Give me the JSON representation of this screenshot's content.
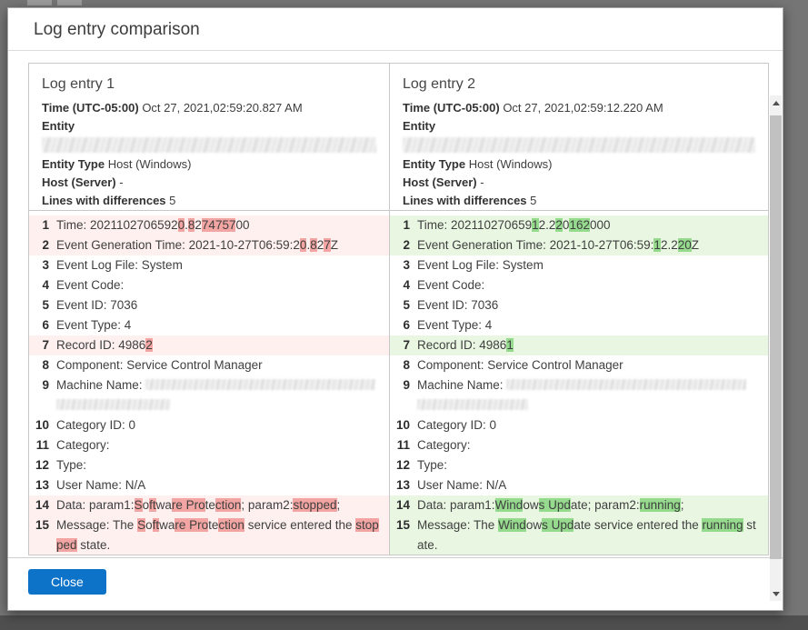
{
  "dialog": {
    "title": "Log entry comparison",
    "close_label": "Close"
  },
  "colors": {
    "removed_line_bg": "#fdf0ef",
    "removed_highlight": "#f2a5a2",
    "added_line_bg": "#e9f7e2",
    "added_highlight": "#95da8d",
    "close_button_bg": "#0c73c9",
    "backdrop": "#757575"
  },
  "panels": [
    {
      "title": "Log entry 1",
      "meta": [
        {
          "label": "Time (UTC-05:00)",
          "value": "Oct 27, 2021,02:59:20.827 AM"
        },
        {
          "label": "Entity",
          "value": "",
          "redacted": true
        },
        {
          "label": "Entity Type",
          "value": "Host (Windows)"
        },
        {
          "label": "Host (Server)",
          "value": "-"
        },
        {
          "label": "Lines with differences",
          "value": "5"
        }
      ],
      "lines": [
        {
          "num": 1,
          "status": "removed",
          "segments": [
            {
              "t": "Time: 2021102706592"
            },
            {
              "t": "0",
              "h": true
            },
            {
              "t": "."
            },
            {
              "t": "8",
              "h": true
            },
            {
              "t": "2"
            },
            {
              "t": "74757",
              "h": true
            },
            {
              "t": "00"
            }
          ]
        },
        {
          "num": 2,
          "status": "removed",
          "segments": [
            {
              "t": "Event Generation Time: 2021-10-27T06:59:2"
            },
            {
              "t": "0",
              "h": true
            },
            {
              "t": "."
            },
            {
              "t": "8",
              "h": true
            },
            {
              "t": "2"
            },
            {
              "t": "7",
              "h": true
            },
            {
              "t": "Z"
            }
          ]
        },
        {
          "num": 3,
          "status": "same",
          "segments": [
            {
              "t": "Event Log File: System"
            }
          ]
        },
        {
          "num": 4,
          "status": "same",
          "segments": [
            {
              "t": "Event Code:"
            }
          ]
        },
        {
          "num": 5,
          "status": "same",
          "segments": [
            {
              "t": "Event ID: 7036"
            }
          ]
        },
        {
          "num": 6,
          "status": "same",
          "segments": [
            {
              "t": "Event Type: 4"
            }
          ]
        },
        {
          "num": 7,
          "status": "removed",
          "segments": [
            {
              "t": "Record ID: 4986"
            },
            {
              "t": "2",
              "h": true
            }
          ]
        },
        {
          "num": 8,
          "status": "same",
          "segments": [
            {
              "t": "Component: Service Control Manager"
            }
          ]
        },
        {
          "num": 9,
          "status": "same",
          "segments": [
            {
              "t": "Machine Name: "
            },
            {
              "redact": 253
            },
            {
              "redact": 125
            }
          ]
        },
        {
          "num": 10,
          "status": "same",
          "segments": [
            {
              "t": "Category ID: 0"
            }
          ]
        },
        {
          "num": 11,
          "status": "same",
          "segments": [
            {
              "t": "Category:"
            }
          ]
        },
        {
          "num": 12,
          "status": "same",
          "segments": [
            {
              "t": "Type:"
            }
          ]
        },
        {
          "num": 13,
          "status": "same",
          "segments": [
            {
              "t": "User Name: N/A"
            }
          ]
        },
        {
          "num": 14,
          "status": "removed",
          "segments": [
            {
              "t": "Data: param1:"
            },
            {
              "t": "S",
              "h": true
            },
            {
              "t": "o"
            },
            {
              "t": "ft",
              "h": true
            },
            {
              "t": "wa"
            },
            {
              "t": "re Pro",
              "h": true
            },
            {
              "t": "te"
            },
            {
              "t": "ction",
              "h": true
            },
            {
              "t": "; param2:"
            },
            {
              "t": "stopped",
              "h": true
            },
            {
              "t": ";"
            }
          ]
        },
        {
          "num": 15,
          "status": "removed",
          "segments": [
            {
              "t": "Message: The "
            },
            {
              "t": "S",
              "h": true
            },
            {
              "t": "o"
            },
            {
              "t": "ft",
              "h": true
            },
            {
              "t": "wa"
            },
            {
              "t": "re Pro",
              "h": true
            },
            {
              "t": "te"
            },
            {
              "t": "ction",
              "h": true
            },
            {
              "t": " service entered the "
            },
            {
              "t": "stopped",
              "h": true
            },
            {
              "t": " state."
            }
          ]
        }
      ]
    },
    {
      "title": "Log entry 2",
      "meta": [
        {
          "label": "Time (UTC-05:00)",
          "value": "Oct 27, 2021,02:59:12.220 AM"
        },
        {
          "label": "Entity",
          "value": "",
          "redacted": true
        },
        {
          "label": "Entity Type",
          "value": "Host (Windows)"
        },
        {
          "label": "Host (Server)",
          "value": "-"
        },
        {
          "label": "Lines with differences",
          "value": "5"
        }
      ],
      "lines": [
        {
          "num": 1,
          "status": "added",
          "segments": [
            {
              "t": "Time: 202110270659"
            },
            {
              "t": "1",
              "h": true
            },
            {
              "t": "2.2"
            },
            {
              "t": "2",
              "h": true
            },
            {
              "t": "0"
            },
            {
              "t": "162",
              "h": true
            },
            {
              "t": "000"
            }
          ]
        },
        {
          "num": 2,
          "status": "added",
          "segments": [
            {
              "t": "Event Generation Time: 2021-10-27T06:59:"
            },
            {
              "t": "1",
              "h": true
            },
            {
              "t": "2.2"
            },
            {
              "t": "20",
              "h": true
            },
            {
              "t": "Z"
            }
          ]
        },
        {
          "num": 3,
          "status": "same",
          "segments": [
            {
              "t": "Event Log File: System"
            }
          ]
        },
        {
          "num": 4,
          "status": "same",
          "segments": [
            {
              "t": "Event Code:"
            }
          ]
        },
        {
          "num": 5,
          "status": "same",
          "segments": [
            {
              "t": "Event ID: 7036"
            }
          ]
        },
        {
          "num": 6,
          "status": "same",
          "segments": [
            {
              "t": "Event Type: 4"
            }
          ]
        },
        {
          "num": 7,
          "status": "added",
          "segments": [
            {
              "t": "Record ID: 4986"
            },
            {
              "t": "1",
              "h": true
            }
          ]
        },
        {
          "num": 8,
          "status": "same",
          "segments": [
            {
              "t": "Component: Service Control Manager"
            }
          ]
        },
        {
          "num": 9,
          "status": "same",
          "segments": [
            {
              "t": "Machine Name: "
            },
            {
              "redact": 264
            },
            {
              "redact": 122
            }
          ]
        },
        {
          "num": 10,
          "status": "same",
          "segments": [
            {
              "t": "Category ID: 0"
            }
          ]
        },
        {
          "num": 11,
          "status": "same",
          "segments": [
            {
              "t": "Category:"
            }
          ]
        },
        {
          "num": 12,
          "status": "same",
          "segments": [
            {
              "t": "Type:"
            }
          ]
        },
        {
          "num": 13,
          "status": "same",
          "segments": [
            {
              "t": "User Name: N/A"
            }
          ]
        },
        {
          "num": 14,
          "status": "added",
          "segments": [
            {
              "t": "Data: param1:"
            },
            {
              "t": "Wind",
              "h": true
            },
            {
              "t": "ow"
            },
            {
              "t": "s Upd",
              "h": true
            },
            {
              "t": "ate"
            },
            {
              "t": "; param2:"
            },
            {
              "t": "running",
              "h": true
            },
            {
              "t": ";"
            }
          ]
        },
        {
          "num": 15,
          "status": "added",
          "segments": [
            {
              "t": "Message: The "
            },
            {
              "t": "Wind",
              "h": true
            },
            {
              "t": "ow"
            },
            {
              "t": "s Upd",
              "h": true
            },
            {
              "t": "ate"
            },
            {
              "t": " service entered the "
            },
            {
              "t": "running",
              "h": true
            },
            {
              "t": " state."
            }
          ]
        }
      ]
    }
  ]
}
